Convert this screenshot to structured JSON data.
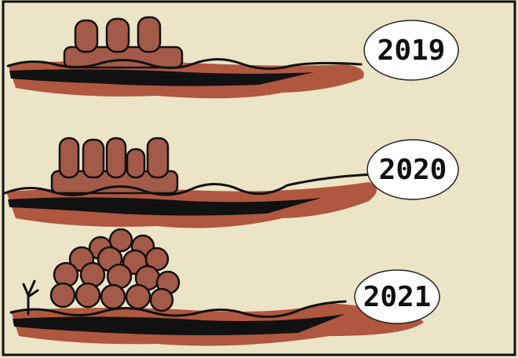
{
  "panels": [
    {
      "label": "2019"
    },
    {
      "label": "2020"
    },
    {
      "label": "2021"
    }
  ]
}
